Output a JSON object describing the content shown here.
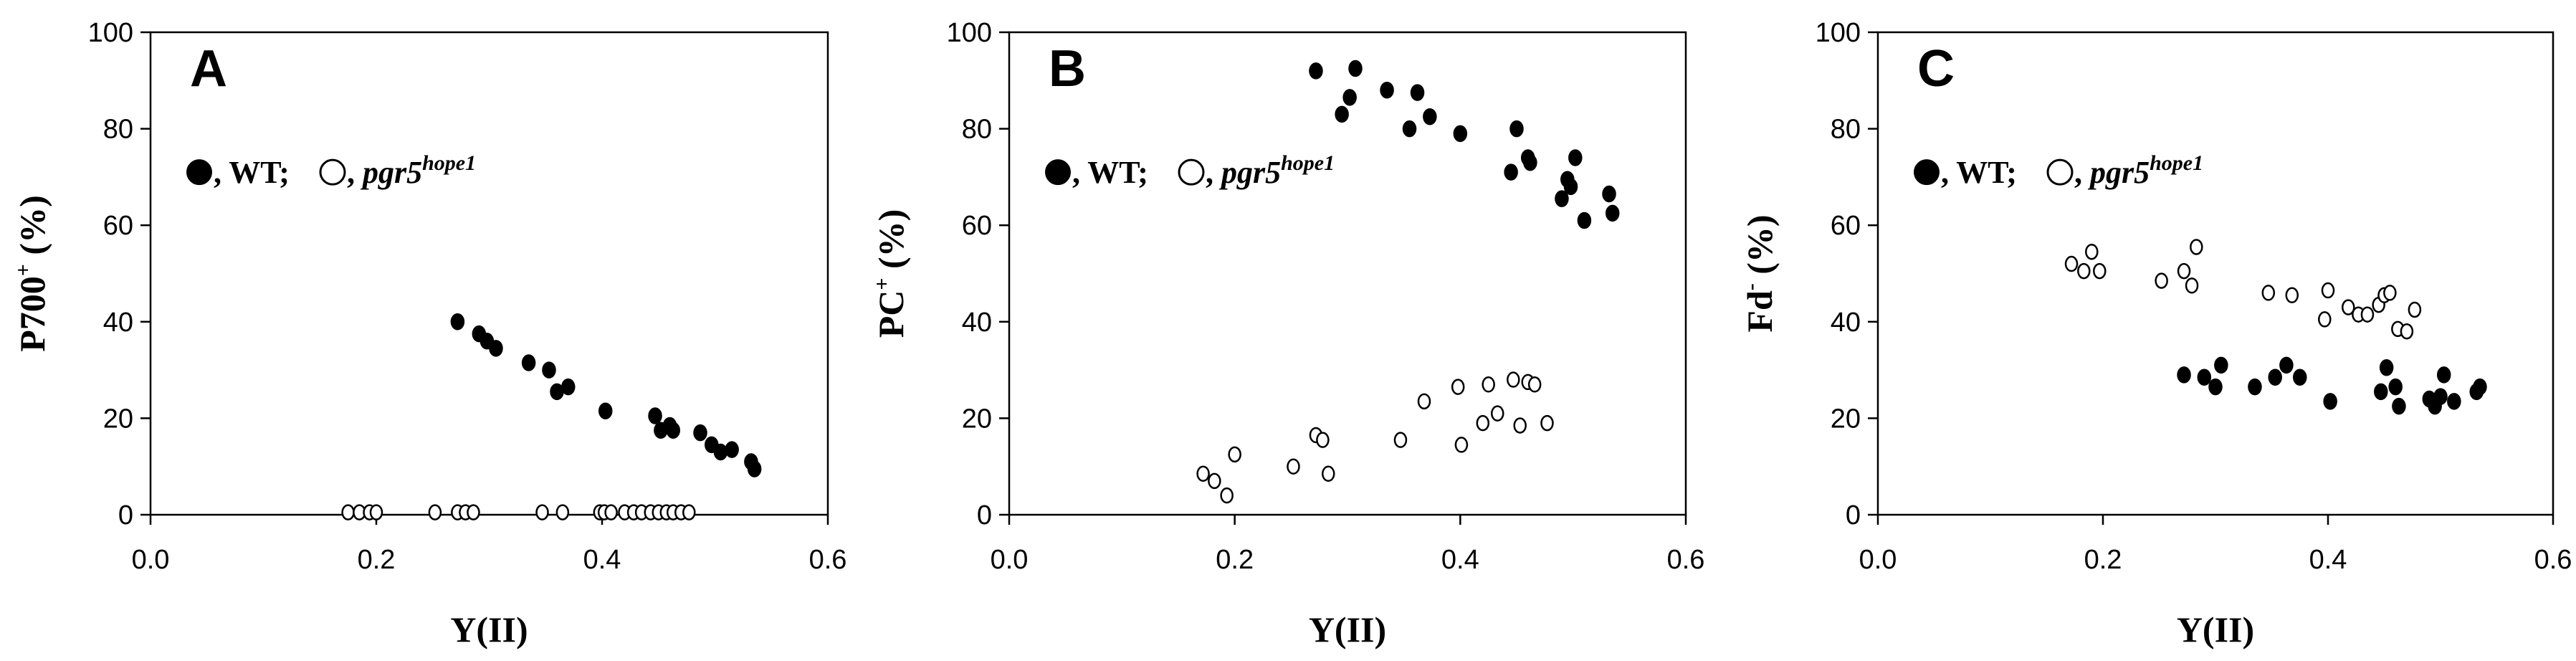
{
  "chart_data": [
    {
      "type": "scatter",
      "panel_label": "A",
      "xlabel": "Y(II)",
      "ylabel_main": "P700",
      "ylabel_sup": "+",
      "ylabel_unit": " (%)",
      "xlim": [
        0.0,
        0.6
      ],
      "ylim": [
        0,
        100
      ],
      "xticks": [
        "0.0",
        "0.2",
        "0.4",
        "0.6"
      ],
      "yticks": [
        "0",
        "20",
        "40",
        "60",
        "80",
        "100"
      ],
      "legend": {
        "wt": ", WT;",
        "mut_prefix": ", ",
        "mut_italic": "pgr5",
        "mut_sup": "hope1"
      },
      "series": [
        {
          "name": "WT",
          "marker": "filled",
          "points": [
            [
              0.272,
              40
            ],
            [
              0.291,
              37.5
            ],
            [
              0.298,
              36
            ],
            [
              0.306,
              34.5
            ],
            [
              0.335,
              31.5
            ],
            [
              0.353,
              30
            ],
            [
              0.36,
              25.5
            ],
            [
              0.37,
              26.5
            ],
            [
              0.403,
              21.5
            ],
            [
              0.447,
              20.5
            ],
            [
              0.452,
              17.5
            ],
            [
              0.46,
              18.5
            ],
            [
              0.463,
              17.5
            ],
            [
              0.487,
              17
            ],
            [
              0.497,
              14.5
            ],
            [
              0.505,
              13
            ],
            [
              0.515,
              13.5
            ],
            [
              0.532,
              11
            ],
            [
              0.535,
              9.5
            ]
          ]
        },
        {
          "name": "pgr5hope1",
          "marker": "open",
          "points": [
            [
              0.175,
              0.5
            ],
            [
              0.185,
              0.5
            ],
            [
              0.194,
              0.5
            ],
            [
              0.2,
              0.5
            ],
            [
              0.252,
              0.5
            ],
            [
              0.272,
              0.5
            ],
            [
              0.279,
              0.5
            ],
            [
              0.286,
              0.5
            ],
            [
              0.347,
              0.5
            ],
            [
              0.365,
              0.5
            ],
            [
              0.398,
              0.5
            ],
            [
              0.402,
              0.5
            ],
            [
              0.408,
              0.5
            ],
            [
              0.42,
              0.5
            ],
            [
              0.428,
              0.5
            ],
            [
              0.435,
              0.5
            ],
            [
              0.443,
              0.5
            ],
            [
              0.45,
              0.5
            ],
            [
              0.457,
              0.5
            ],
            [
              0.463,
              0.5
            ],
            [
              0.47,
              0.5
            ],
            [
              0.477,
              0.5
            ]
          ]
        }
      ]
    },
    {
      "type": "scatter",
      "panel_label": "B",
      "xlabel": "Y(II)",
      "ylabel_main": "PC",
      "ylabel_sup": "+",
      "ylabel_unit": " (%)",
      "xlim": [
        0.0,
        0.6
      ],
      "ylim": [
        0,
        100
      ],
      "xticks": [
        "0.0",
        "0.2",
        "0.4",
        "0.6"
      ],
      "yticks": [
        "0",
        "20",
        "40",
        "60",
        "80",
        "100"
      ],
      "legend": {
        "wt": ", WT;",
        "mut_prefix": ", ",
        "mut_italic": "pgr5",
        "mut_sup": "hope1"
      },
      "series": [
        {
          "name": "WT",
          "marker": "filled",
          "points": [
            [
              0.272,
              92
            ],
            [
              0.295,
              83
            ],
            [
              0.302,
              86.5
            ],
            [
              0.307,
              92.5
            ],
            [
              0.335,
              88
            ],
            [
              0.355,
              80
            ],
            [
              0.362,
              87.5
            ],
            [
              0.373,
              82.5
            ],
            [
              0.4,
              79
            ],
            [
              0.445,
              71
            ],
            [
              0.45,
              80
            ],
            [
              0.46,
              74
            ],
            [
              0.462,
              73
            ],
            [
              0.49,
              65.5
            ],
            [
              0.495,
              69.5
            ],
            [
              0.498,
              68
            ],
            [
              0.502,
              74
            ],
            [
              0.51,
              61
            ],
            [
              0.532,
              66.5
            ],
            [
              0.535,
              62.5
            ]
          ]
        },
        {
          "name": "pgr5hope1",
          "marker": "open",
          "points": [
            [
              0.172,
              8.5
            ],
            [
              0.182,
              7
            ],
            [
              0.193,
              4
            ],
            [
              0.2,
              12.5
            ],
            [
              0.252,
              10
            ],
            [
              0.272,
              16.5
            ],
            [
              0.278,
              15.5
            ],
            [
              0.283,
              8.5
            ],
            [
              0.347,
              15.5
            ],
            [
              0.368,
              23.5
            ],
            [
              0.398,
              26.5
            ],
            [
              0.401,
              14.5
            ],
            [
              0.42,
              19
            ],
            [
              0.425,
              27
            ],
            [
              0.433,
              21
            ],
            [
              0.447,
              28
            ],
            [
              0.453,
              18.5
            ],
            [
              0.46,
              27.5
            ],
            [
              0.466,
              27
            ],
            [
              0.477,
              19
            ]
          ]
        }
      ]
    },
    {
      "type": "scatter",
      "panel_label": "C",
      "xlabel": "Y(II)",
      "ylabel_main": "Fd",
      "ylabel_sup": "-",
      "ylabel_unit": " (%)",
      "xlim": [
        0.0,
        0.6
      ],
      "ylim": [
        0,
        100
      ],
      "xticks": [
        "0.0",
        "0.2",
        "0.4",
        "0.6"
      ],
      "yticks": [
        "0",
        "20",
        "40",
        "60",
        "80",
        "100"
      ],
      "legend": {
        "wt": ", WT;",
        "mut_prefix": ", ",
        "mut_italic": "pgr5",
        "mut_sup": "hope1"
      },
      "series": [
        {
          "name": "WT",
          "marker": "filled",
          "points": [
            [
              0.272,
              29
            ],
            [
              0.29,
              28.5
            ],
            [
              0.3,
              26.5
            ],
            [
              0.305,
              31
            ],
            [
              0.335,
              26.5
            ],
            [
              0.353,
              28.5
            ],
            [
              0.363,
              31
            ],
            [
              0.375,
              28.5
            ],
            [
              0.402,
              23.5
            ],
            [
              0.447,
              25.5
            ],
            [
              0.452,
              30.5
            ],
            [
              0.46,
              26.5
            ],
            [
              0.463,
              22.5
            ],
            [
              0.49,
              24
            ],
            [
              0.495,
              22.5
            ],
            [
              0.5,
              24.5
            ],
            [
              0.503,
              29
            ],
            [
              0.512,
              23.5
            ],
            [
              0.532,
              25.5
            ],
            [
              0.535,
              26.5
            ]
          ]
        },
        {
          "name": "pgr5hope1",
          "marker": "open",
          "points": [
            [
              0.172,
              52
            ],
            [
              0.183,
              50.5
            ],
            [
              0.19,
              54.5
            ],
            [
              0.197,
              50.5
            ],
            [
              0.252,
              48.5
            ],
            [
              0.272,
              50.5
            ],
            [
              0.279,
              47.5
            ],
            [
              0.283,
              55.5
            ],
            [
              0.347,
              46
            ],
            [
              0.368,
              45.5
            ],
            [
              0.397,
              40.5
            ],
            [
              0.4,
              46.5
            ],
            [
              0.418,
              43
            ],
            [
              0.427,
              41.5
            ],
            [
              0.435,
              41.5
            ],
            [
              0.445,
              43.5
            ],
            [
              0.45,
              45.5
            ],
            [
              0.455,
              46
            ],
            [
              0.462,
              38.5
            ],
            [
              0.47,
              38
            ],
            [
              0.477,
              42.5
            ]
          ]
        }
      ]
    }
  ]
}
